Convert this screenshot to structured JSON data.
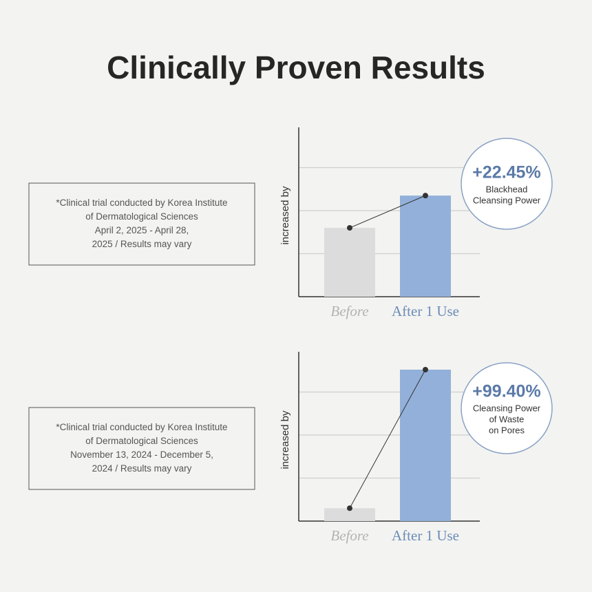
{
  "title": "Clinically Proven Results",
  "chart_data": [
    {
      "type": "bar",
      "ylabel": "increased by",
      "categories": [
        "Before",
        "After 1 Use"
      ],
      "values": [
        1.6,
        2.35
      ],
      "colors": [
        "#dcdcdc",
        "#92b0d9"
      ],
      "category_colors": [
        "#b3b3b3",
        "#6b8cb8"
      ],
      "ylim": [
        0,
        4
      ],
      "yticks": [
        1,
        2,
        3
      ],
      "grid": true,
      "callout": {
        "value": "+22.45%",
        "label": [
          "Blackhead",
          "Cleansing Power"
        ]
      },
      "note": [
        "*Clinical trial conducted by Korea Institute",
        "of Dermatological Sciences",
        "April 2, 2025 - April 28,",
        "2025 / Results may vary"
      ]
    },
    {
      "type": "bar",
      "ylabel": "increased by",
      "categories": [
        "Before",
        "After 1 Use"
      ],
      "values": [
        0.3,
        3.52
      ],
      "colors": [
        "#dcdcdc",
        "#92b0d9"
      ],
      "category_colors": [
        "#b3b3b3",
        "#6b8cb8"
      ],
      "ylim": [
        0,
        4
      ],
      "yticks": [
        1,
        2,
        3
      ],
      "grid": true,
      "callout": {
        "value": "+99.40%",
        "label": [
          "Cleansing Power",
          "of Waste",
          "on Pores"
        ]
      },
      "note": [
        "*Clinical trial conducted by Korea Institute",
        "of Dermatological Sciences",
        "November 13, 2024 - December 5,",
        "2024 / Results may vary"
      ]
    }
  ]
}
